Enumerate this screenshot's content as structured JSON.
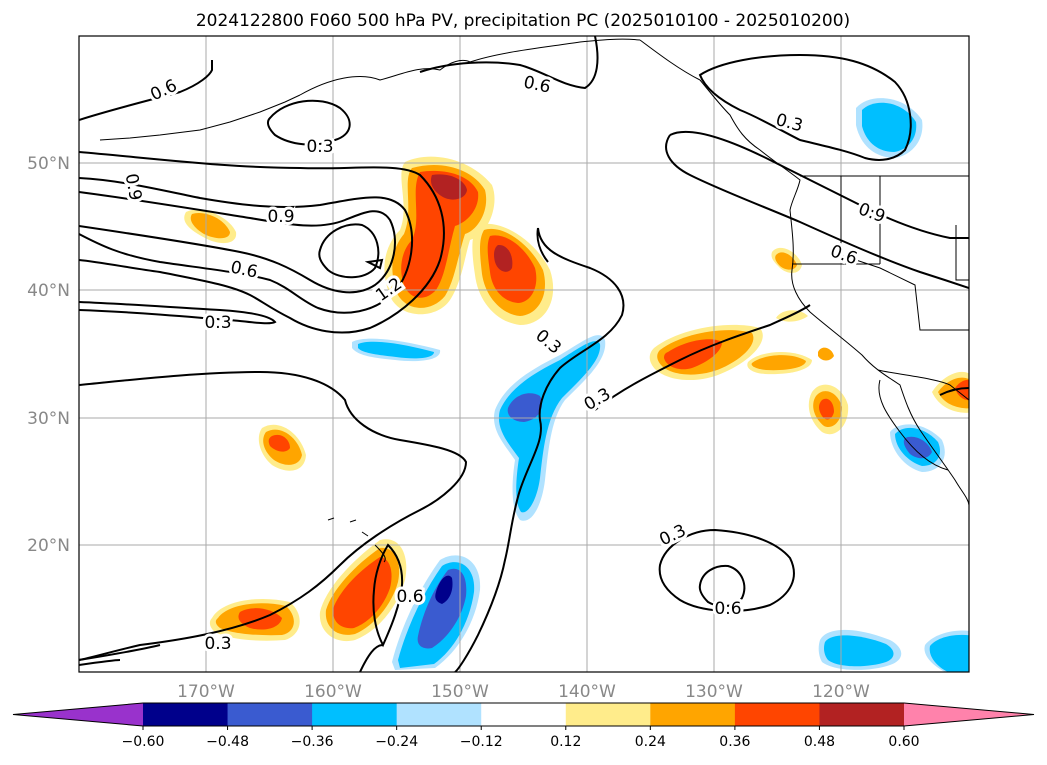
{
  "title": "2024122800 F060 500 hPa PV, precipitation PC (2025010100 - 2025010200)",
  "map": {
    "lat_ticks": [
      "50°N",
      "40°N",
      "30°N",
      "20°N"
    ],
    "lon_ticks": [
      "170°W",
      "160°W",
      "150°W",
      "140°W",
      "130°W",
      "120°W"
    ],
    "grid": true,
    "projection": "PlateCarree"
  },
  "contour_labels": [
    {
      "text": "0.6",
      "name": "pv-label-0-6-nw"
    },
    {
      "text": "0.3",
      "name": "pv-label-0-3-nw"
    },
    {
      "text": "0.9",
      "name": "pv-label-0-9-west-edge"
    },
    {
      "text": "0.9",
      "name": "pv-label-0-9-west"
    },
    {
      "text": "0.6",
      "name": "pv-label-0-6-west"
    },
    {
      "text": "0.3",
      "name": "pv-label-0-3-west"
    },
    {
      "text": "1.2",
      "name": "pv-label-1-2-center"
    },
    {
      "text": "0.6",
      "name": "pv-label-0-6-north"
    },
    {
      "text": "0.3",
      "name": "pv-label-0-3-ne"
    },
    {
      "text": "0.9",
      "name": "pv-label-0-9-coast"
    },
    {
      "text": "0.6",
      "name": "pv-label-0-6-coast"
    },
    {
      "text": "0.3",
      "name": "pv-label-0-3-mid"
    },
    {
      "text": "0.3",
      "name": "pv-label-0-3-trough"
    },
    {
      "text": "0.6",
      "name": "pv-label-0-6-south"
    },
    {
      "text": "0.3",
      "name": "pv-label-0-3-southwest"
    },
    {
      "text": "0.3",
      "name": "pv-label-0-3-south-ring"
    },
    {
      "text": "0.6",
      "name": "pv-label-0-6-south-ring"
    }
  ],
  "colorbar": {
    "levels": [
      "−0.60",
      "−0.48",
      "−0.36",
      "−0.24",
      "−0.12",
      "0.12",
      "0.24",
      "0.36",
      "0.48",
      "0.60"
    ],
    "colors": [
      "#9932cc",
      "#00008b",
      "#3a5bd0",
      "#00bfff",
      "#b0e2ff",
      "#ffffff",
      "#ffec8b",
      "#ffa500",
      "#ff4500",
      "#b22222",
      "#ff82ab"
    ],
    "extend": "both"
  }
}
